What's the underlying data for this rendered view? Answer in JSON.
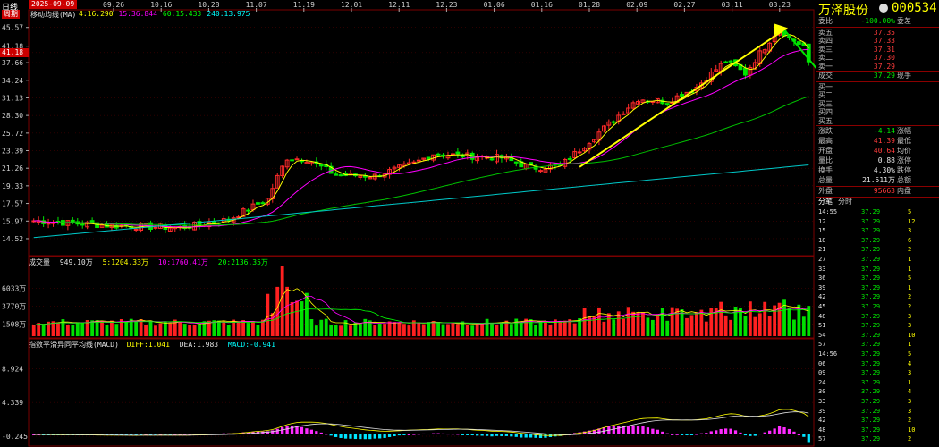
{
  "header": {
    "period": "日线",
    "date": "2025-09-09",
    "left_tag_top": "周期",
    "indicator_name": "移动均线(MA)",
    "ma_values": [
      {
        "label": "4:16.290",
        "color": "#ffff00"
      },
      {
        "label": "15:36.844",
        "color": "#ff00ff"
      },
      {
        "label": "60:15.433",
        "color": "#00ff00"
      },
      {
        "label": "240:13.975",
        "color": "#00ffff"
      }
    ],
    "date_ticks": [
      "09.26",
      "10.16",
      "10.28",
      "11.07",
      "11.19",
      "12.01",
      "12.11",
      "12.23",
      "01.06",
      "01.16",
      "01.28",
      "02.09",
      "02.27",
      "03.11",
      "03.23"
    ],
    "price_ticks": [
      "45.57",
      "41.18",
      "39.77",
      "37.66",
      "34.24",
      "31.13",
      "28.30",
      "25.72",
      "23.39",
      "21.26",
      "19.33",
      "17.57",
      "15.97",
      "14.52"
    ],
    "current_price_tag": "41.18"
  },
  "volume_panel": {
    "title": "成交量",
    "total": "949.10万",
    "ma5": "5:1204.33万",
    "ma10": "10:1760.41万",
    "ma20": "20:2136.35万",
    "ticks": [
      "6033万",
      "3770万",
      "1508万"
    ]
  },
  "macd_panel": {
    "title": "指数平滑异同平均线(MACD)",
    "diff": "DIFF:1.041",
    "dea": "DEA:1.983",
    "macd": "MACD:-0.941",
    "ticks": [
      "8.924",
      "4.339",
      "-0.245"
    ]
  },
  "stock": {
    "name": "万泽股份",
    "code": "000534",
    "webi_label": "委比",
    "webi_value": "-100.00%",
    "weicha_label": "委差",
    "asks": [
      {
        "label": "卖五",
        "price": "37.35"
      },
      {
        "label": "卖四",
        "price": "37.33"
      },
      {
        "label": "卖三",
        "price": "37.31"
      },
      {
        "label": "卖二",
        "price": "37.30"
      },
      {
        "label": "卖一",
        "price": "37.29"
      }
    ],
    "deal_label": "成交",
    "deal_value": "37.29",
    "xianshou_label": "现手",
    "bids": [
      "买一",
      "买二",
      "买三",
      "买四",
      "买五"
    ],
    "stats": [
      {
        "l1": "涨跌",
        "v1": "-4.14",
        "l2": "涨幅",
        "c": "green"
      },
      {
        "l1": "最高",
        "v1": "41.39",
        "l2": "最低",
        "c": "red"
      },
      {
        "l1": "开盘",
        "v1": "40.64",
        "l2": "均价",
        "c": "red"
      },
      {
        "l1": "量比",
        "v1": "0.88",
        "l2": "涨停",
        "c": "white"
      },
      {
        "l1": "换手",
        "v1": "4.30%",
        "l2": "跌停",
        "c": "white"
      },
      {
        "l1": "总量",
        "v1": "21.511万",
        "l2": "总额",
        "c": "white"
      }
    ],
    "waipan_label": "外盘",
    "waipan_value": "95663",
    "neipan_label": "内盘",
    "tabs": [
      "分笔",
      "分时"
    ],
    "ticks": [
      {
        "t": "14:55",
        "p": "37.29",
        "v": "5"
      },
      {
        "t": "12",
        "p": "37.29",
        "v": "12"
      },
      {
        "t": "15",
        "p": "37.29",
        "v": "3"
      },
      {
        "t": "18",
        "p": "37.29",
        "v": "6"
      },
      {
        "t": "21",
        "p": "37.29",
        "v": "2"
      },
      {
        "t": "27",
        "p": "37.29",
        "v": "1"
      },
      {
        "t": "33",
        "p": "37.29",
        "v": "1"
      },
      {
        "t": "36",
        "p": "37.29",
        "v": "5"
      },
      {
        "t": "39",
        "p": "37.29",
        "v": "1"
      },
      {
        "t": "42",
        "p": "37.29",
        "v": "2"
      },
      {
        "t": "45",
        "p": "37.29",
        "v": "2"
      },
      {
        "t": "48",
        "p": "37.29",
        "v": "3"
      },
      {
        "t": "51",
        "p": "37.29",
        "v": "3"
      },
      {
        "t": "54",
        "p": "37.29",
        "v": "10"
      },
      {
        "t": "57",
        "p": "37.29",
        "v": "1"
      },
      {
        "t": "14:56",
        "p": "37.29",
        "v": "5"
      },
      {
        "t": "06",
        "p": "37.29",
        "v": "4"
      },
      {
        "t": "09",
        "p": "37.29",
        "v": "3"
      },
      {
        "t": "24",
        "p": "37.29",
        "v": "1"
      },
      {
        "t": "30",
        "p": "37.29",
        "v": "4"
      },
      {
        "t": "33",
        "p": "37.29",
        "v": "3"
      },
      {
        "t": "39",
        "p": "37.29",
        "v": "3"
      },
      {
        "t": "42",
        "p": "37.29",
        "v": "2"
      },
      {
        "t": "48",
        "p": "37.29",
        "v": "10"
      },
      {
        "t": "57",
        "p": "37.29",
        "v": "2"
      }
    ]
  },
  "colors": {
    "up": "#ff2a2a",
    "down": "#00e600",
    "ma4": "#ffff00",
    "ma15": "#ff00ff",
    "ma60": "#00c000",
    "ma240": "#00c8c8",
    "grid": "#7a0000"
  }
}
